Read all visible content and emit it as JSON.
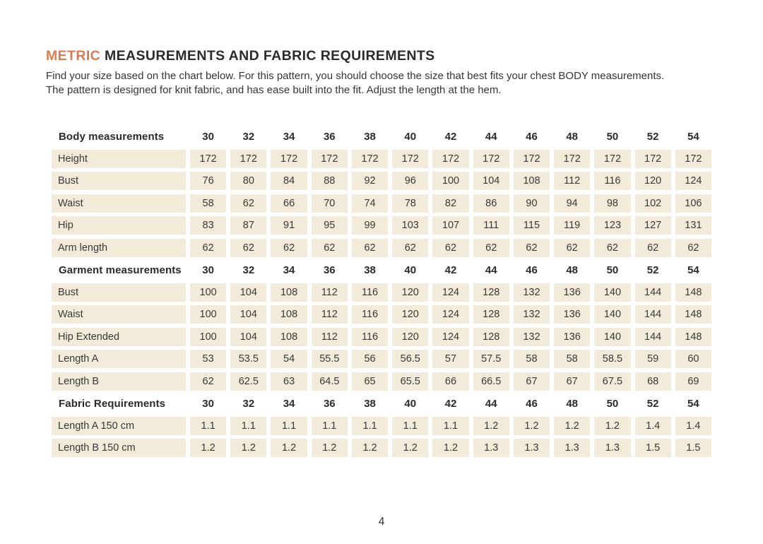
{
  "page": {
    "title_accent": "METRIC",
    "title_rest": " MEASUREMENTS AND FABRIC REQUIREMENTS",
    "intro_line1": "Find your size based on the chart below. For this pattern, you should choose the size that best fits your chest BODY measurements.",
    "intro_line2": "The pattern is designed for knit fabric, and has ease built into the fit.  Adjust the length at the hem.",
    "page_number": "4"
  },
  "colors": {
    "accent": "#d97c52",
    "cell_background": "#f2ebd9",
    "text": "#2c2b2a"
  },
  "table": {
    "sizes": [
      "30",
      "32",
      "34",
      "36",
      "38",
      "40",
      "42",
      "44",
      "46",
      "48",
      "50",
      "52",
      "54"
    ],
    "sections": [
      {
        "header": "Body measurements",
        "rows": [
          {
            "label": "Height",
            "values": [
              "172",
              "172",
              "172",
              "172",
              "172",
              "172",
              "172",
              "172",
              "172",
              "172",
              "172",
              "172",
              "172"
            ]
          },
          {
            "label": "Bust",
            "values": [
              "76",
              "80",
              "84",
              "88",
              "92",
              "96",
              "100",
              "104",
              "108",
              "112",
              "116",
              "120",
              "124"
            ]
          },
          {
            "label": "Waist",
            "values": [
              "58",
              "62",
              "66",
              "70",
              "74",
              "78",
              "82",
              "86",
              "90",
              "94",
              "98",
              "102",
              "106"
            ]
          },
          {
            "label": "Hip",
            "values": [
              "83",
              "87",
              "91",
              "95",
              "99",
              "103",
              "107",
              "111",
              "115",
              "119",
              "123",
              "127",
              "131"
            ]
          },
          {
            "label": "Arm length",
            "values": [
              "62",
              "62",
              "62",
              "62",
              "62",
              "62",
              "62",
              "62",
              "62",
              "62",
              "62",
              "62",
              "62"
            ]
          }
        ]
      },
      {
        "header": "Garment measurements",
        "rows": [
          {
            "label": "Bust",
            "values": [
              "100",
              "104",
              "108",
              "112",
              "116",
              "120",
              "124",
              "128",
              "132",
              "136",
              "140",
              "144",
              "148"
            ]
          },
          {
            "label": "Waist",
            "values": [
              "100",
              "104",
              "108",
              "112",
              "116",
              "120",
              "124",
              "128",
              "132",
              "136",
              "140",
              "144",
              "148"
            ]
          },
          {
            "label": "Hip Extended",
            "values": [
              "100",
              "104",
              "108",
              "112",
              "116",
              "120",
              "124",
              "128",
              "132",
              "136",
              "140",
              "144",
              "148"
            ]
          },
          {
            "label": "Length A",
            "values": [
              "53",
              "53.5",
              "54",
              "55.5",
              "56",
              "56.5",
              "57",
              "57.5",
              "58",
              "58",
              "58.5",
              "59",
              "60"
            ]
          },
          {
            "label": "Length B",
            "values": [
              "62",
              "62.5",
              "63",
              "64.5",
              "65",
              "65.5",
              "66",
              "66.5",
              "67",
              "67",
              "67.5",
              "68",
              "69"
            ]
          }
        ]
      },
      {
        "header": "Fabric Requirements",
        "rows": [
          {
            "label": "Length A 150 cm",
            "values": [
              "1.1",
              "1.1",
              "1.1",
              "1.1",
              "1.1",
              "1.1",
              "1.1",
              "1.2",
              "1.2",
              "1.2",
              "1.2",
              "1.4",
              "1.4"
            ]
          },
          {
            "label": "Length B 150 cm",
            "values": [
              "1.2",
              "1.2",
              "1.2",
              "1.2",
              "1.2",
              "1.2",
              "1.2",
              "1.3",
              "1.3",
              "1.3",
              "1.3",
              "1.5",
              "1.5"
            ]
          }
        ]
      }
    ]
  }
}
